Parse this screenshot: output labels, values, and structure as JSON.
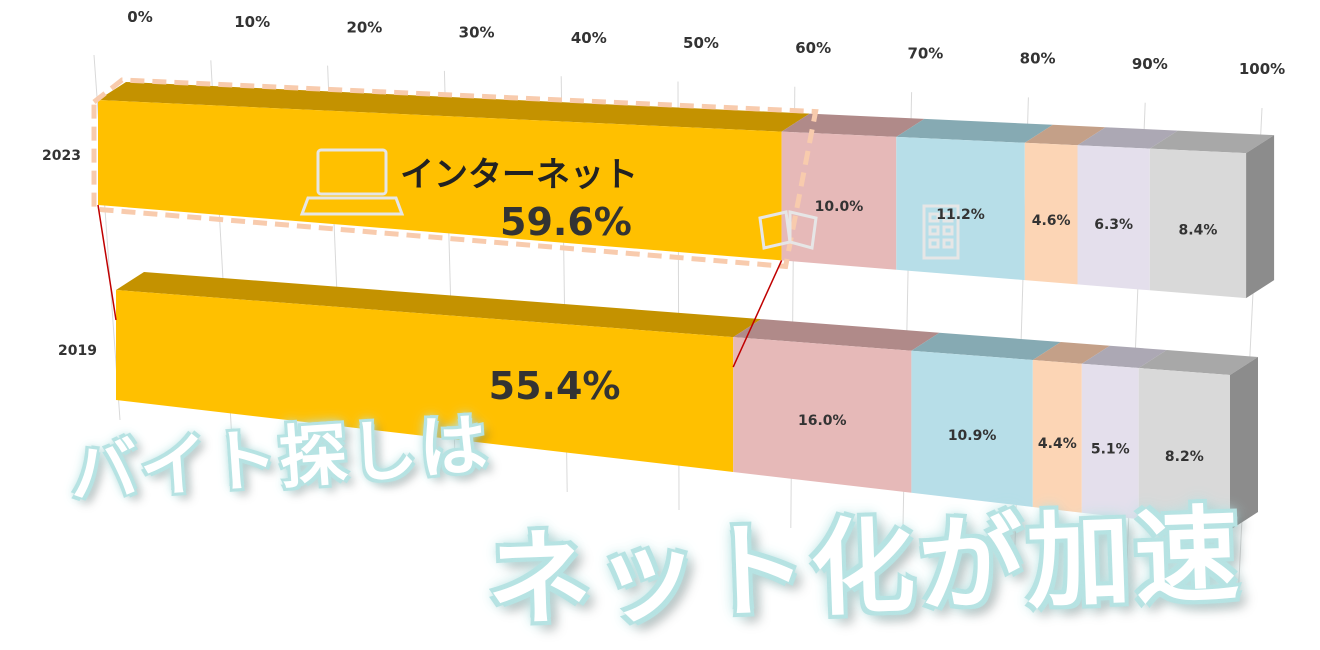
{
  "chart_data": {
    "type": "bar",
    "orientation": "horizontal",
    "stacking": "percent",
    "x_ticks": [
      "0%",
      "10%",
      "20%",
      "30%",
      "40%",
      "50%",
      "60%",
      "70%",
      "80%",
      "90%",
      "100%"
    ],
    "xlim": [
      0,
      100
    ],
    "categories": [
      "2023",
      "2019"
    ],
    "series": [
      {
        "values": [
          59.6,
          55.4
        ],
        "labels": [
          "59.6%",
          "55.4%"
        ],
        "color": "#FFC000",
        "top_color": "#C49200"
      },
      {
        "values": [
          10.0,
          16.0
        ],
        "labels": [
          "10.0%",
          "16.0%"
        ],
        "color": "#E6B9B8",
        "top_color": "#B08A89"
      },
      {
        "values": [
          11.2,
          10.9
        ],
        "labels": [
          "11.2%",
          "10.9%"
        ],
        "color": "#B7DEE8",
        "top_color": "#86AAB3"
      },
      {
        "values": [
          4.6,
          4.4
        ],
        "labels": [
          "4.6%",
          "4.4%"
        ],
        "color": "#FCD5B5",
        "top_color": "#C4A088"
      },
      {
        "values": [
          6.3,
          5.1
        ],
        "labels": [
          "6.3%",
          "5.1%"
        ],
        "color": "#E4DFEC",
        "top_color": "#ACA8B4"
      },
      {
        "values": [
          8.4,
          8.2
        ],
        "labels": [
          "8.4%",
          "8.2%"
        ],
        "color": "#D9D9D9",
        "top_color": "#A8A8A8"
      }
    ],
    "side_color": "#8C8C8C",
    "grid": true,
    "callout": {
      "name": "インターネット",
      "value": "59.6%",
      "category": "2023"
    }
  },
  "headline": {
    "line1": "バイト探しは",
    "line2": "ネット化が加速"
  },
  "colors": {
    "headline_glow": "#B7E3E3",
    "connector": "#C00000",
    "callout_border": "#F8CBAD"
  },
  "icons": [
    "laptop-icon",
    "book-icon",
    "building-icon"
  ]
}
